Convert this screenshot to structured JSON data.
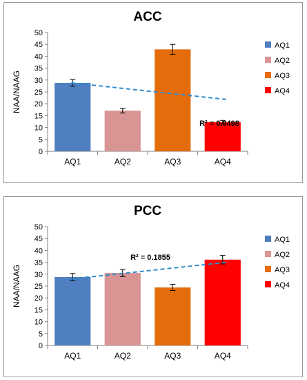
{
  "colors": {
    "aq1": "#4f7fc0",
    "aq2": "#d99594",
    "aq3": "#e46c0a",
    "aq4": "#ff0000",
    "trendline": "#2f8ccc",
    "axis": "#808080",
    "gridline": "#d9d9d9"
  },
  "chart_data": [
    {
      "type": "bar",
      "title": "ACC",
      "ylabel": "NAA/NAAG",
      "xlabel": "",
      "categories": [
        "AQ1",
        "AQ2",
        "AQ3",
        "AQ4"
      ],
      "values": [
        28.8,
        17.1,
        42.9,
        12.3
      ],
      "errors": [
        1.4,
        1.0,
        2.1,
        0.7
      ],
      "ylim": [
        0,
        50
      ],
      "yticks": [
        "0",
        "5",
        "10",
        "15",
        "20",
        "25",
        "30",
        "35",
        "40",
        "45",
        "50"
      ],
      "legend": [
        "AQ1",
        "AQ2",
        "AQ3",
        "AQ4"
      ],
      "legend_position": "right",
      "trendline": {
        "y_start": 28.8,
        "y_end": 21.8,
        "annotation": "R² = 0.0498"
      },
      "grid": false
    },
    {
      "type": "bar",
      "title": "PCC",
      "ylabel": "NAA/NAAG",
      "xlabel": "",
      "categories": [
        "AQ1",
        "AQ2",
        "AQ3",
        "AQ4"
      ],
      "values": [
        28.8,
        30.5,
        24.4,
        36.1
      ],
      "errors": [
        1.5,
        1.5,
        1.3,
        1.8
      ],
      "ylim": [
        0,
        50
      ],
      "yticks": [
        "0",
        "5",
        "10",
        "15",
        "20",
        "25",
        "30",
        "35",
        "40",
        "45",
        "50"
      ],
      "legend": [
        "AQ1",
        "AQ2",
        "AQ3",
        "AQ4"
      ],
      "legend_position": "right",
      "trendline": {
        "y_start": 28.0,
        "y_end": 35.0,
        "annotation": "R² = 0.1855"
      },
      "grid": false
    }
  ]
}
